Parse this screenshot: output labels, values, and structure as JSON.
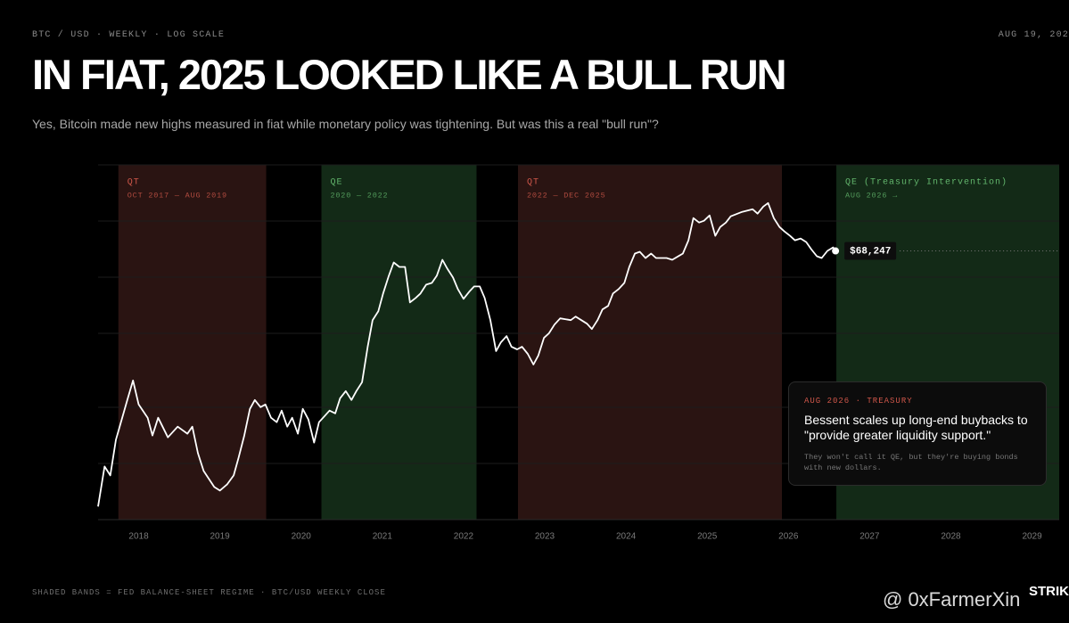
{
  "chart_data": {
    "type": "line",
    "kicker": "BTC / USD · WEEKLY · LOG SCALE",
    "date": "AUG 19, 202",
    "title": "IN FIAT, 2025 LOOKED LIKE A BULL RUN",
    "subtitle": "Yes, Bitcoin made new highs measured in fiat while monetary policy was tightening. But was this a real \"bull run\"?",
    "log_scale": true,
    "xlim": [
      2017.5,
      2029.334
    ],
    "ylim": [
      2200,
      205000
    ],
    "xticks": [
      2018,
      2019,
      2020,
      2021,
      2022,
      2023,
      2024,
      2025,
      2026,
      2027,
      2028,
      2029
    ],
    "bands": [
      {
        "name": "QT",
        "period": "OCT 2017 — AUG 2019",
        "start": 2017.75,
        "end": 2019.57,
        "color": "#2a1412",
        "label_color": "#d0574a"
      },
      {
        "name": "QE",
        "period": "2020 — 2022",
        "start": 2020.25,
        "end": 2022.16,
        "color": "#132a17",
        "label_color": "#62b56c"
      },
      {
        "name": "QT",
        "period": "2022 — DEC 2025",
        "start": 2022.67,
        "end": 2025.92,
        "color": "#2a1412",
        "label_color": "#d0574a"
      },
      {
        "name": "QE (Treasury Intervention)",
        "period": "AUG 2026 →",
        "start": 2026.59,
        "end": 2029.334,
        "color": "#132a17",
        "label_color": "#62b56c"
      }
    ],
    "x": [
      2017.5,
      2017.58,
      2017.65,
      2017.72,
      2017.86,
      2017.93,
      2018.0,
      2018.11,
      2018.17,
      2018.24,
      2018.36,
      2018.48,
      2018.6,
      2018.66,
      2018.73,
      2018.8,
      2018.93,
      2019.0,
      2019.09,
      2019.17,
      2019.23,
      2019.3,
      2019.37,
      2019.43,
      2019.5,
      2019.56,
      2019.63,
      2019.7,
      2019.76,
      2019.83,
      2019.89,
      2019.96,
      2020.02,
      2020.09,
      2020.16,
      2020.22,
      2020.29,
      2020.35,
      2020.42,
      2020.48,
      2020.55,
      2020.62,
      2020.68,
      2020.75,
      2020.82,
      2020.88,
      2020.95,
      2021.01,
      2021.08,
      2021.14,
      2021.21,
      2021.28,
      2021.34,
      2021.41,
      2021.47,
      2021.54,
      2021.61,
      2021.67,
      2021.74,
      2021.8,
      2021.87,
      2021.93,
      2022.0,
      2022.07,
      2022.13,
      2022.2,
      2022.26,
      2022.33,
      2022.4,
      2022.46,
      2022.53,
      2022.59,
      2022.66,
      2022.72,
      2022.79,
      2022.86,
      2022.92,
      2022.99,
      2023.05,
      2023.12,
      2023.19,
      2023.32,
      2023.38,
      2023.52,
      2023.58,
      2023.65,
      2023.71,
      2023.78,
      2023.84,
      2023.91,
      2023.98,
      2024.04,
      2024.11,
      2024.17,
      2024.24,
      2024.31,
      2024.37,
      2024.5,
      2024.57,
      2024.7,
      2024.77,
      2024.83,
      2024.9,
      2024.96,
      2025.03,
      2025.1,
      2025.16,
      2025.23,
      2025.29,
      2025.43,
      2025.56,
      2025.62,
      2025.69,
      2025.75,
      2025.82,
      2025.89,
      2025.95,
      2026.02,
      2026.08,
      2026.15,
      2026.22,
      2026.28,
      2026.35,
      2026.41,
      2026.48,
      2026.55,
      2026.58
    ],
    "series": [
      {
        "color": "#ffffff",
        "values": [
          2600,
          4340,
          3870,
          6100,
          10150,
          13030,
          9590,
          8090,
          6450,
          8090,
          6300,
          7220,
          6600,
          7220,
          5140,
          4100,
          3340,
          3190,
          3455,
          3870,
          4855,
          6450,
          9060,
          10150,
          9270,
          9590,
          8090,
          7640,
          8860,
          7220,
          8090,
          6600,
          9060,
          7910,
          5890,
          7640,
          8275,
          8860,
          8560,
          10380,
          11370,
          10150,
          11370,
          12740,
          20040,
          28170,
          31550,
          39600,
          49670,
          58880,
          55640,
          55640,
          35340,
          37410,
          39600,
          44350,
          45370,
          49670,
          60900,
          54400,
          48560,
          41910,
          36980,
          40500,
          43350,
          43350,
          37410,
          28170,
          18940,
          21210,
          22970,
          20040,
          19380,
          20040,
          18310,
          15980,
          17890,
          22460,
          23770,
          26620,
          28820,
          28170,
          29490,
          26930,
          25150,
          28170,
          32290,
          33790,
          39600,
          41910,
          45370,
          55640,
          65950,
          67470,
          62300,
          65950,
          62300,
          62300,
          60900,
          65950,
          78180,
          103800,
          98080,
          100300,
          107400,
          82740,
          92690,
          98080,
          106200,
          112400,
          116300,
          109900,
          120300,
          125900,
          103800,
          92690,
          87580,
          82740,
          78180,
          79980,
          76400,
          69810,
          63740,
          62300,
          68247,
          71400,
          68247
        ]
      }
    ],
    "price_tag": {
      "value": 68247,
      "label": "$68,247"
    },
    "callout": {
      "kicker": "AUG 2026 · TREASURY",
      "headline": "Bessent scales up long-end buybacks to \"provide greater liquidity support.\"",
      "note": "They won't call it QE, but they're buying bonds with new dollars."
    },
    "footer": "SHADED BANDS = FED BALANCE-SHEET REGIME · BTC/USD WEEKLY CLOSE",
    "brand": "STRIK",
    "watermark": "@ 0xFarmerXin"
  }
}
